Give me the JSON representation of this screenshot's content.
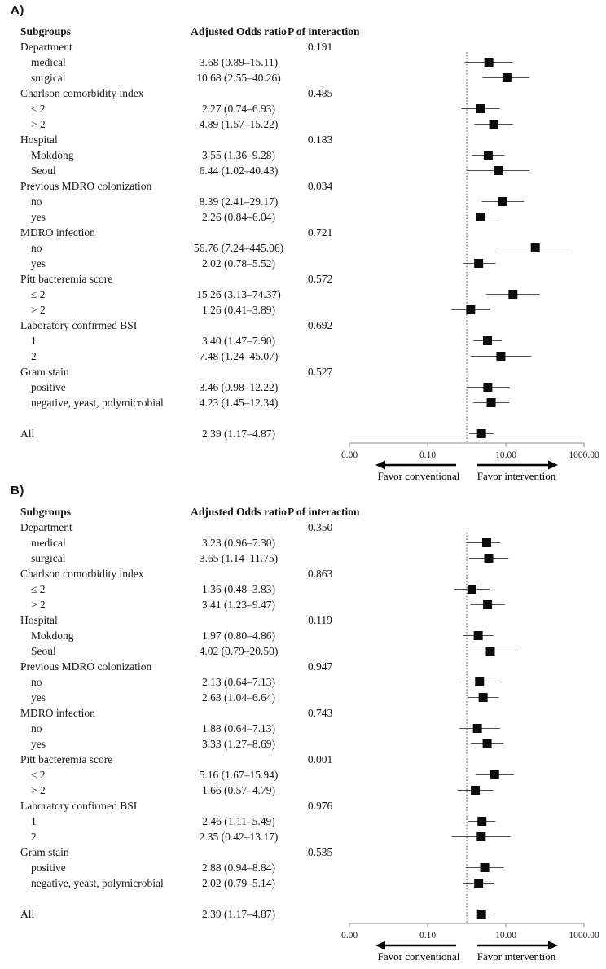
{
  "columns": {
    "subgroups": "Subgroups",
    "or": "Adjusted Odds ratio",
    "p": "P of interaction"
  },
  "axis": {
    "scale": "log10",
    "null_value": 1,
    "ticks": [
      {
        "label": "0.00",
        "at": 0.001
      },
      {
        "label": "0.10",
        "at": 0.1
      },
      {
        "label": "10.00",
        "at": 10
      },
      {
        "label": "1000.00",
        "at": 1000
      }
    ],
    "favor_left": "Favor conventional",
    "favor_right": "Favor intervention"
  },
  "colors": {
    "marker": "#0c0c0c",
    "whisker": "#4d4d4d",
    "axis": "#8d8d8d",
    "text": "#151515"
  },
  "chart_data": [
    {
      "type": "forest",
      "panel_label": "A)",
      "x_scale": "log10",
      "x_ticks": [
        "0.00",
        "0.10",
        "10.00",
        "1000.00"
      ],
      "null_line": 1,
      "rows": [
        {
          "label": "Department",
          "indent": 0,
          "p": "0.191"
        },
        {
          "label": "medical",
          "indent": 1,
          "or_text": "3.68 (0.89–15.11)",
          "or": 3.68,
          "lo": 0.89,
          "hi": 15.11
        },
        {
          "label": "surgical",
          "indent": 1,
          "or_text": "10.68 (2.55–40.26)",
          "or": 10.68,
          "lo": 2.55,
          "hi": 40.26
        },
        {
          "label": "Charlson comorbidity index",
          "indent": 0,
          "p": "0.485"
        },
        {
          "label": "≤ 2",
          "indent": 1,
          "or_text": "2.27 (0.74–6.93)",
          "or": 2.27,
          "lo": 0.74,
          "hi": 6.93
        },
        {
          "label": "> 2",
          "indent": 1,
          "or_text": "4.89 (1.57–15.22)",
          "or": 4.89,
          "lo": 1.57,
          "hi": 15.22
        },
        {
          "label": "Hospital",
          "indent": 0,
          "p": "0.183"
        },
        {
          "label": "Mokdong",
          "indent": 1,
          "or_text": "3.55 (1.36–9.28)",
          "or": 3.55,
          "lo": 1.36,
          "hi": 9.28
        },
        {
          "label": "Seoul",
          "indent": 1,
          "or_text": "6.44 (1.02–40.43)",
          "or": 6.44,
          "lo": 1.02,
          "hi": 40.43
        },
        {
          "label": "Previous MDRO colonization",
          "indent": 0,
          "p": "0.034"
        },
        {
          "label": "no",
          "indent": 1,
          "or_text": "8.39 (2.41–29.17)",
          "or": 8.39,
          "lo": 2.41,
          "hi": 29.17
        },
        {
          "label": "yes",
          "indent": 1,
          "or_text": "2.26 (0.84–6.04)",
          "or": 2.26,
          "lo": 0.84,
          "hi": 6.04
        },
        {
          "label": "MDRO infection",
          "indent": 0,
          "p": "0.721"
        },
        {
          "label": "no",
          "indent": 1,
          "or_text": "56.76 (7.24–445.06)",
          "or": 56.76,
          "lo": 7.24,
          "hi": 445.06
        },
        {
          "label": "yes",
          "indent": 1,
          "or_text": "2.02 (0.78–5.52)",
          "or": 2.02,
          "lo": 0.78,
          "hi": 5.52
        },
        {
          "label": "Pitt bacteremia score",
          "indent": 0,
          "p": "0.572"
        },
        {
          "label": "≤ 2",
          "indent": 1,
          "or_text": "15.26 (3.13–74.37)",
          "or": 15.26,
          "lo": 3.13,
          "hi": 74.37
        },
        {
          "label": "> 2",
          "indent": 1,
          "or_text": "1.26 (0.41–3.89)",
          "or": 1.26,
          "lo": 0.41,
          "hi": 3.89
        },
        {
          "label": "Laboratory confirmed BSI",
          "indent": 0,
          "p": "0.692"
        },
        {
          "label": "1",
          "indent": 1,
          "or_text": "3.40 (1.47–7.90)",
          "or": 3.4,
          "lo": 1.47,
          "hi": 7.9
        },
        {
          "label": "2",
          "indent": 1,
          "or_text": "7.48 (1.24–45.07)",
          "or": 7.48,
          "lo": 1.24,
          "hi": 45.07
        },
        {
          "label": "Gram stain",
          "indent": 0,
          "p": "0.527"
        },
        {
          "label": "positive",
          "indent": 1,
          "or_text": "3.46 (0.98–12.22)",
          "or": 3.46,
          "lo": 0.98,
          "hi": 12.22
        },
        {
          "label": "negative, yeast, polymicrobial",
          "indent": 1,
          "or_text": "4.23 (1.45–12.34)",
          "or": 4.23,
          "lo": 1.45,
          "hi": 12.34
        },
        {
          "spacer": true
        },
        {
          "label": "All",
          "indent": 0,
          "or_text": "2.39 (1.17–4.87)",
          "or": 2.39,
          "lo": 1.17,
          "hi": 4.87
        }
      ]
    },
    {
      "type": "forest",
      "panel_label": "B)",
      "x_scale": "log10",
      "x_ticks": [
        "0.00",
        "0.10",
        "10.00",
        "1000.00"
      ],
      "null_line": 1,
      "rows": [
        {
          "label": "Department",
          "indent": 0,
          "p": "0.350"
        },
        {
          "label": "medical",
          "indent": 1,
          "or_text": "3.23 (0.96–7.30)",
          "or": 3.23,
          "lo": 0.96,
          "hi": 7.3
        },
        {
          "label": "surgical",
          "indent": 1,
          "or_text": "3.65 (1.14–11.75)",
          "or": 3.65,
          "lo": 1.14,
          "hi": 11.75
        },
        {
          "label": "Charlson comorbidity index",
          "indent": 0,
          "p": "0.863"
        },
        {
          "label": "≤ 2",
          "indent": 1,
          "or_text": "1.36 (0.48–3.83)",
          "or": 1.36,
          "lo": 0.48,
          "hi": 3.83
        },
        {
          "label": "> 2",
          "indent": 1,
          "or_text": "3.41 (1.23–9.47)",
          "or": 3.41,
          "lo": 1.23,
          "hi": 9.47
        },
        {
          "label": "Hospital",
          "indent": 0,
          "p": "0.119"
        },
        {
          "label": "Mokdong",
          "indent": 1,
          "or_text": "1.97 (0.80–4.86)",
          "or": 1.97,
          "lo": 0.8,
          "hi": 4.86
        },
        {
          "label": "Seoul",
          "indent": 1,
          "or_text": "4.02 (0.79–20.50)",
          "or": 4.02,
          "lo": 0.79,
          "hi": 20.5
        },
        {
          "label": "Previous MDRO colonization",
          "indent": 0,
          "p": "0.947"
        },
        {
          "label": "no",
          "indent": 1,
          "or_text": "2.13 (0.64–7.13)",
          "or": 2.13,
          "lo": 0.64,
          "hi": 7.13
        },
        {
          "label": "yes",
          "indent": 1,
          "or_text": "2.63 (1.04–6.64)",
          "or": 2.63,
          "lo": 1.04,
          "hi": 6.64
        },
        {
          "label": "MDRO infection",
          "indent": 0,
          "p": "0.743"
        },
        {
          "label": "no",
          "indent": 1,
          "or_text": "1.88 (0.64–7.13)",
          "or": 1.88,
          "lo": 0.64,
          "hi": 7.13
        },
        {
          "label": "yes",
          "indent": 1,
          "or_text": "3.33 (1.27–8.69)",
          "or": 3.33,
          "lo": 1.27,
          "hi": 8.69
        },
        {
          "label": "Pitt bacteremia score",
          "indent": 0,
          "p": "0.001"
        },
        {
          "label": "≤ 2",
          "indent": 1,
          "or_text": "5.16 (1.67–15.94)",
          "or": 5.16,
          "lo": 1.67,
          "hi": 15.94
        },
        {
          "label": "> 2",
          "indent": 1,
          "or_text": "1.66 (0.57–4.79)",
          "or": 1.66,
          "lo": 0.57,
          "hi": 4.79
        },
        {
          "label": "Laboratory confirmed BSI",
          "indent": 0,
          "p": "0.976"
        },
        {
          "label": "1",
          "indent": 1,
          "or_text": "2.46 (1.11–5.49)",
          "or": 2.46,
          "lo": 1.11,
          "hi": 5.49
        },
        {
          "label": "2",
          "indent": 1,
          "or_text": "2.35 (0.42–13.17)",
          "or": 2.35,
          "lo": 0.42,
          "hi": 13.17
        },
        {
          "label": "Gram stain",
          "indent": 0,
          "p": "0.535"
        },
        {
          "label": "positive",
          "indent": 1,
          "or_text": "2.88 (0.94–8.84)",
          "or": 2.88,
          "lo": 0.94,
          "hi": 8.84
        },
        {
          "label": "negative, yeast, polymicrobial",
          "indent": 1,
          "or_text": "2.02 (0.79–5.14)",
          "or": 2.02,
          "lo": 0.79,
          "hi": 5.14
        },
        {
          "spacer": true
        },
        {
          "label": "All",
          "indent": 0,
          "or_text": "2.39 (1.17–4.87)",
          "or": 2.39,
          "lo": 1.17,
          "hi": 4.87
        }
      ]
    }
  ]
}
